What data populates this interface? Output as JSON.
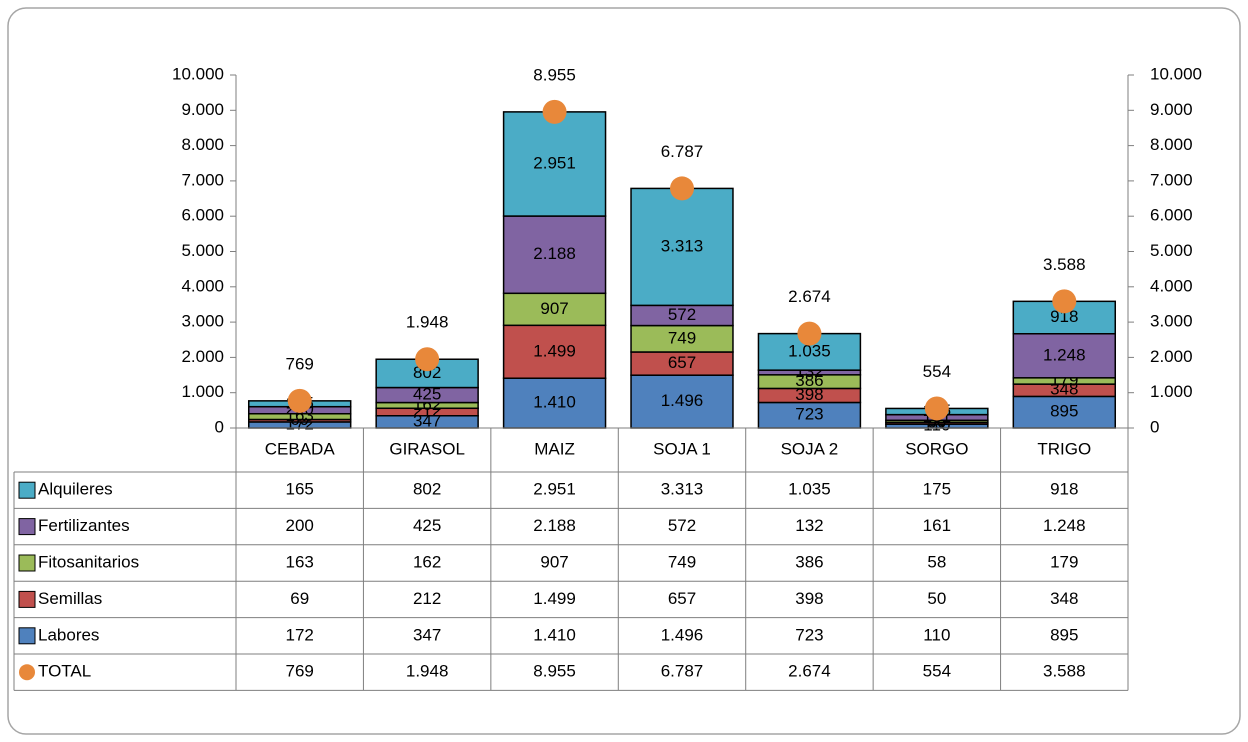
{
  "chart_data": {
    "type": "bar",
    "stacked": true,
    "categories": [
      "CEBADA",
      "GIRASOL",
      "MAIZ",
      "SOJA 1",
      "SOJA 2",
      "SORGO",
      "TRIGO"
    ],
    "series": [
      {
        "name": "Alquileres",
        "color": "#4bacc6",
        "values": [
          165,
          802,
          2951,
          3313,
          1035,
          175,
          918
        ],
        "value_labels": [
          "165",
          "802",
          "2.951",
          "3.313",
          "1.035",
          "175",
          "918"
        ]
      },
      {
        "name": "Fertilizantes",
        "color": "#8064a2",
        "values": [
          200,
          425,
          2188,
          572,
          132,
          161,
          1248
        ],
        "value_labels": [
          "200",
          "425",
          "2.188",
          "572",
          "132",
          "161",
          "1.248"
        ]
      },
      {
        "name": "Fitosanitarios",
        "color": "#9bbb59",
        "values": [
          163,
          162,
          907,
          749,
          386,
          58,
          179
        ],
        "value_labels": [
          "163",
          "162",
          "907",
          "749",
          "386",
          "58",
          "179"
        ]
      },
      {
        "name": "Semillas",
        "color": "#c0504d",
        "values": [
          69,
          212,
          1499,
          657,
          398,
          50,
          348
        ],
        "value_labels": [
          "69",
          "212",
          "1.499",
          "657",
          "398",
          "50",
          "348"
        ]
      },
      {
        "name": "Labores",
        "color": "#4f81bd",
        "values": [
          172,
          347,
          1410,
          1496,
          723,
          110,
          895
        ],
        "value_labels": [
          "172",
          "347",
          "1.410",
          "1.496",
          "723",
          "110",
          "895"
        ]
      },
      {
        "name": "TOTAL",
        "type": "scatter",
        "color": "#e8883a",
        "values": [
          769,
          1948,
          8955,
          6787,
          2674,
          554,
          3588
        ],
        "value_labels": [
          "769",
          "1.948",
          "8.955",
          "6.787",
          "2.674",
          "554",
          "3.588"
        ]
      }
    ],
    "ylim": [
      0,
      10000
    ],
    "yticks": [
      0,
      {
        "value": 1000,
        "label": "1.000"
      },
      {
        "value": 2000,
        "label": "2.000"
      },
      {
        "value": 3000,
        "label": "3.000"
      },
      {
        "value": 4000,
        "label": "4.000"
      },
      {
        "value": 5000,
        "label": "5.000"
      },
      {
        "value": 6000,
        "label": "6.000"
      },
      {
        "value": 7000,
        "label": "7.000"
      },
      {
        "value": 8000,
        "label": "8.000"
      },
      {
        "value": 9000,
        "label": "9.000"
      },
      {
        "value": 10000,
        "label": "10.000"
      }
    ],
    "y2lim": [
      0,
      10000
    ],
    "y2ticks": [
      0,
      {
        "value": 1000,
        "label": "1.000"
      },
      {
        "value": 2000,
        "label": "2.000"
      },
      {
        "value": 3000,
        "label": "3.000"
      },
      {
        "value": 4000,
        "label": "4.000"
      },
      {
        "value": 5000,
        "label": "5.000"
      },
      {
        "value": 6000,
        "label": "6.000"
      },
      {
        "value": 7000,
        "label": "7.000"
      },
      {
        "value": 8000,
        "label": "8.000"
      },
      {
        "value": 9000,
        "label": "9.000"
      },
      {
        "value": 10000,
        "label": "10.000"
      }
    ],
    "data_table": true
  }
}
